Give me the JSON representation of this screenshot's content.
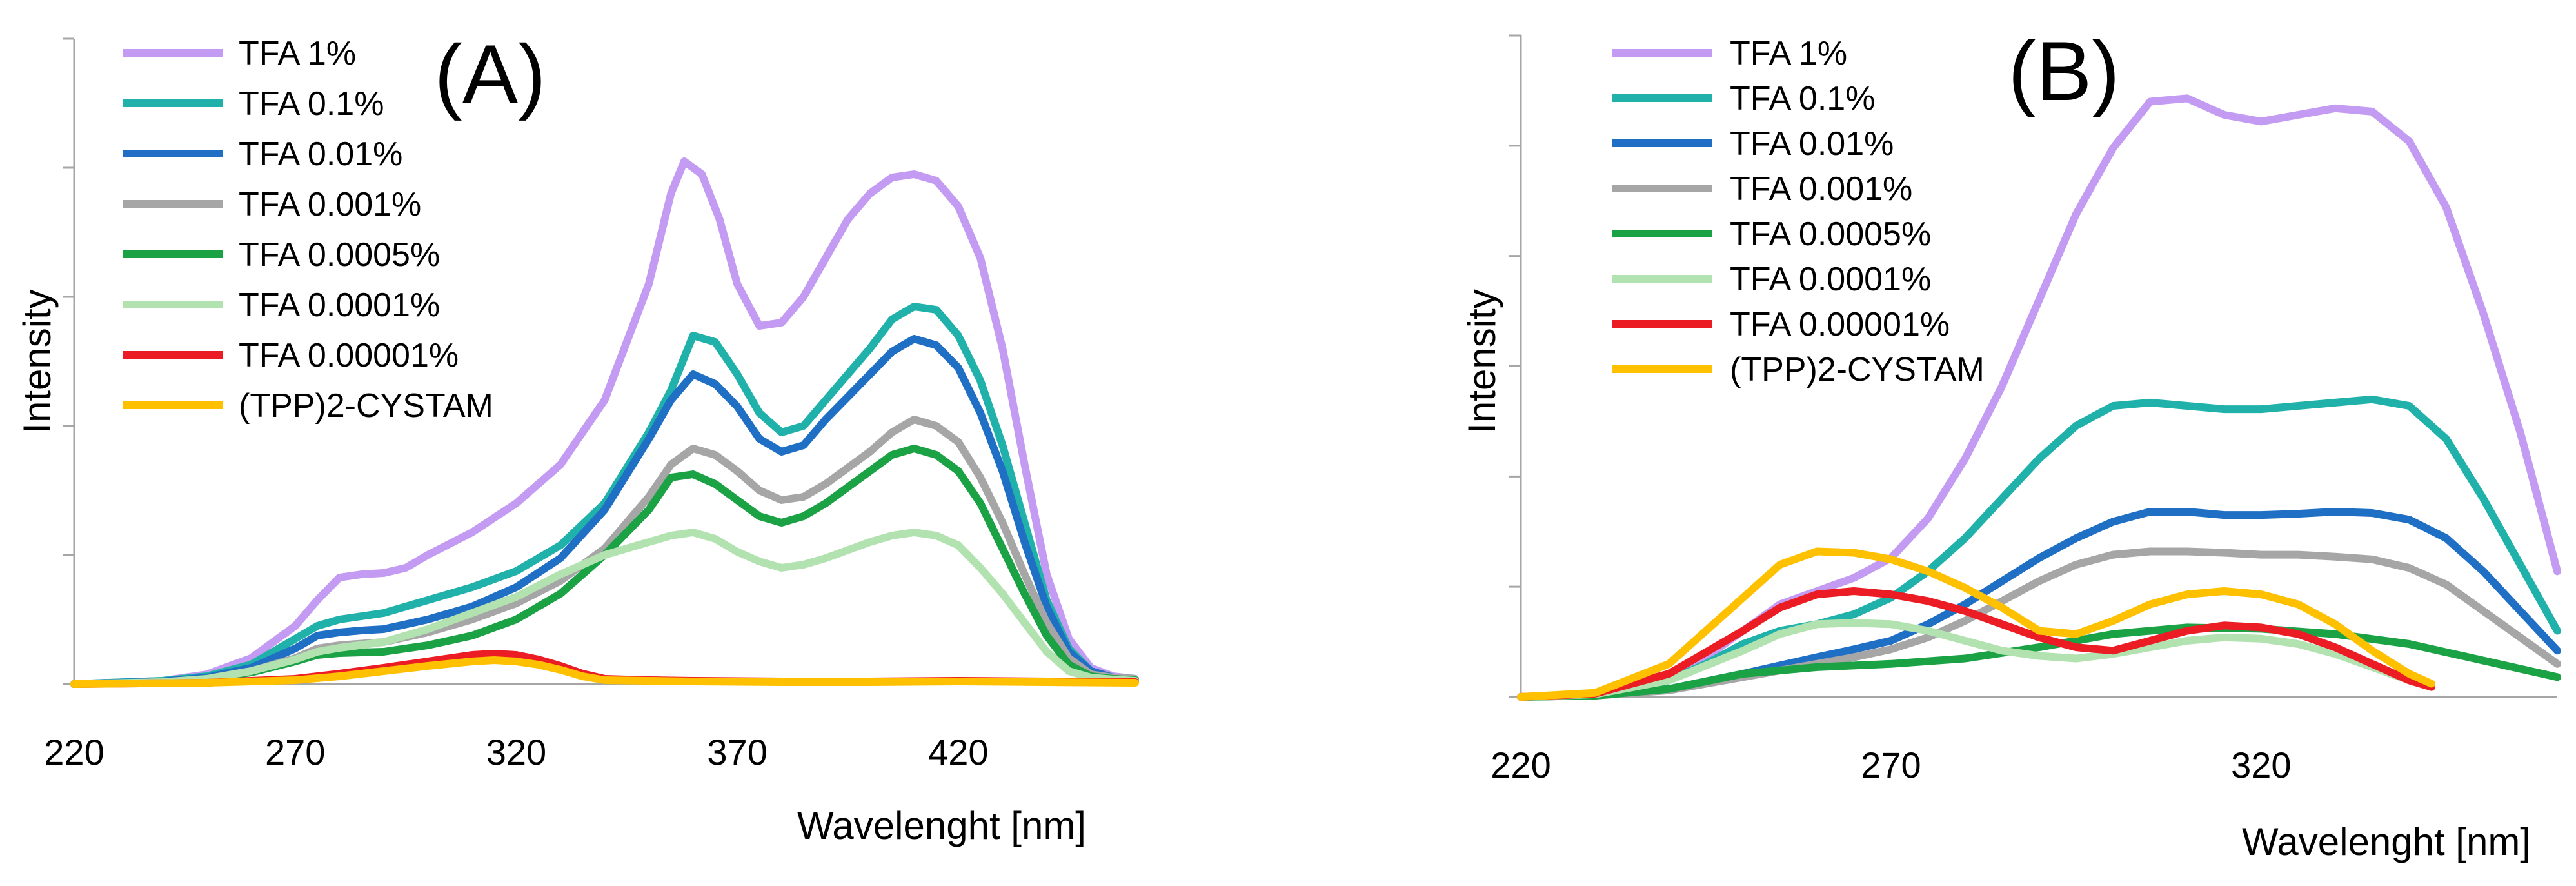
{
  "chart_data": [
    {
      "type": "line",
      "panel_label": "(A)",
      "xlabel": "Wavelenght [nm]",
      "ylabel": "Intensity",
      "xlim": [
        220,
        460
      ],
      "ylim": [
        0,
        1.0
      ],
      "xticks": [
        220,
        270,
        320,
        370,
        420
      ],
      "xtick_labels": [
        "220",
        "270",
        "320",
        "370",
        "420"
      ],
      "yticks": [
        0,
        0.2,
        0.4,
        0.6,
        0.8,
        1.0
      ],
      "grid": false,
      "legend_position": "top-left",
      "series": [
        {
          "name": "TFA 1%",
          "color": "#c39bf2",
          "x": [
            220,
            240,
            250,
            260,
            270,
            275,
            280,
            285,
            290,
            295,
            300,
            310,
            320,
            330,
            340,
            350,
            355,
            358,
            362,
            366,
            370,
            375,
            380,
            385,
            390,
            395,
            400,
            405,
            410,
            415,
            420,
            425,
            430,
            435,
            440,
            445,
            450,
            455,
            460
          ],
          "y": [
            0,
            0.005,
            0.015,
            0.04,
            0.09,
            0.13,
            0.165,
            0.17,
            0.172,
            0.18,
            0.2,
            0.235,
            0.28,
            0.34,
            0.44,
            0.62,
            0.76,
            0.81,
            0.79,
            0.72,
            0.62,
            0.555,
            0.56,
            0.6,
            0.66,
            0.72,
            0.76,
            0.785,
            0.79,
            0.78,
            0.74,
            0.66,
            0.52,
            0.34,
            0.17,
            0.07,
            0.025,
            0.012,
            0.008
          ]
        },
        {
          "name": "TFA 0.1%",
          "color": "#20b2aa",
          "x": [
            220,
            240,
            250,
            260,
            270,
            275,
            280,
            285,
            290,
            300,
            310,
            320,
            330,
            340,
            350,
            355,
            360,
            365,
            370,
            375,
            380,
            385,
            390,
            400,
            405,
            410,
            415,
            420,
            425,
            430,
            435,
            440,
            445,
            450,
            455,
            460
          ],
          "y": [
            0,
            0.005,
            0.012,
            0.03,
            0.07,
            0.09,
            0.1,
            0.105,
            0.11,
            0.13,
            0.15,
            0.175,
            0.215,
            0.28,
            0.39,
            0.455,
            0.54,
            0.53,
            0.48,
            0.42,
            0.39,
            0.4,
            0.44,
            0.52,
            0.565,
            0.585,
            0.58,
            0.54,
            0.47,
            0.37,
            0.25,
            0.13,
            0.055,
            0.02,
            0.01,
            0.008
          ]
        },
        {
          "name": "TFA 0.01%",
          "color": "#1f6fc5",
          "x": [
            220,
            240,
            250,
            260,
            270,
            275,
            280,
            285,
            290,
            300,
            310,
            320,
            330,
            340,
            350,
            355,
            360,
            365,
            370,
            375,
            380,
            385,
            390,
            400,
            405,
            410,
            415,
            420,
            425,
            430,
            435,
            440,
            445,
            450,
            455,
            460
          ],
          "y": [
            0,
            0.004,
            0.01,
            0.025,
            0.055,
            0.075,
            0.08,
            0.083,
            0.085,
            0.1,
            0.12,
            0.15,
            0.195,
            0.27,
            0.38,
            0.44,
            0.48,
            0.465,
            0.43,
            0.38,
            0.36,
            0.37,
            0.41,
            0.48,
            0.515,
            0.535,
            0.525,
            0.49,
            0.42,
            0.33,
            0.22,
            0.12,
            0.05,
            0.02,
            0.01,
            0.008
          ]
        },
        {
          "name": "TFA 0.001%",
          "color": "#a6a6a6",
          "x": [
            220,
            240,
            250,
            260,
            270,
            275,
            280,
            290,
            300,
            310,
            320,
            330,
            340,
            350,
            355,
            360,
            365,
            370,
            375,
            380,
            385,
            390,
            400,
            405,
            410,
            415,
            420,
            425,
            430,
            435,
            440,
            445,
            450,
            455,
            460
          ],
          "y": [
            0,
            0.003,
            0.008,
            0.02,
            0.04,
            0.055,
            0.06,
            0.065,
            0.08,
            0.1,
            0.125,
            0.16,
            0.21,
            0.29,
            0.34,
            0.365,
            0.355,
            0.33,
            0.3,
            0.285,
            0.29,
            0.31,
            0.36,
            0.39,
            0.41,
            0.4,
            0.375,
            0.32,
            0.25,
            0.17,
            0.095,
            0.04,
            0.015,
            0.01,
            0.008
          ]
        },
        {
          "name": "TFA 0.0005%",
          "color": "#1aa245",
          "x": [
            220,
            240,
            250,
            260,
            270,
            275,
            280,
            290,
            300,
            310,
            320,
            330,
            340,
            350,
            355,
            360,
            365,
            370,
            375,
            380,
            385,
            390,
            400,
            405,
            410,
            415,
            420,
            425,
            430,
            435,
            440,
            445,
            450,
            455,
            460
          ],
          "y": [
            0,
            0.003,
            0.008,
            0.018,
            0.035,
            0.045,
            0.048,
            0.05,
            0.06,
            0.075,
            0.1,
            0.14,
            0.2,
            0.27,
            0.32,
            0.325,
            0.31,
            0.285,
            0.26,
            0.25,
            0.26,
            0.28,
            0.33,
            0.355,
            0.365,
            0.355,
            0.33,
            0.28,
            0.21,
            0.14,
            0.075,
            0.03,
            0.012,
            0.008,
            0.006
          ]
        },
        {
          "name": "TFA 0.0001%",
          "color": "#b3e2b1",
          "x": [
            220,
            240,
            250,
            260,
            270,
            275,
            280,
            290,
            300,
            310,
            320,
            330,
            340,
            350,
            355,
            360,
            365,
            370,
            375,
            380,
            385,
            390,
            400,
            405,
            410,
            415,
            420,
            425,
            430,
            435,
            440,
            445,
            450,
            455,
            460
          ],
          "y": [
            0,
            0.003,
            0.008,
            0.02,
            0.038,
            0.05,
            0.056,
            0.065,
            0.085,
            0.11,
            0.135,
            0.17,
            0.2,
            0.22,
            0.23,
            0.235,
            0.225,
            0.205,
            0.19,
            0.18,
            0.185,
            0.195,
            0.22,
            0.23,
            0.235,
            0.23,
            0.215,
            0.18,
            0.14,
            0.095,
            0.05,
            0.02,
            0.01,
            0.007,
            0.005
          ]
        },
        {
          "name": "TFA 0.00001%",
          "color": "#ec1c24",
          "x": [
            220,
            250,
            270,
            280,
            290,
            300,
            310,
            315,
            320,
            325,
            330,
            335,
            340,
            350,
            360,
            380,
            400,
            420,
            440,
            460
          ],
          "y": [
            0,
            0.002,
            0.008,
            0.016,
            0.025,
            0.035,
            0.045,
            0.047,
            0.045,
            0.038,
            0.028,
            0.016,
            0.008,
            0.006,
            0.005,
            0.004,
            0.004,
            0.005,
            0.004,
            0.003
          ]
        },
        {
          "name": "(TPP)2-CYSTAM",
          "color": "#ffc000",
          "x": [
            220,
            250,
            270,
            280,
            290,
            300,
            310,
            315,
            320,
            325,
            330,
            335,
            340,
            350,
            360,
            380,
            400,
            420,
            440,
            460
          ],
          "y": [
            0,
            0.002,
            0.006,
            0.012,
            0.02,
            0.028,
            0.035,
            0.037,
            0.035,
            0.03,
            0.022,
            0.012,
            0.006,
            0.005,
            0.004,
            0.003,
            0.003,
            0.004,
            0.003,
            0.002
          ]
        }
      ]
    },
    {
      "type": "line",
      "panel_label": "(B)",
      "xlabel": "Wavelenght [nm]",
      "ylabel": "Intensity",
      "xlim": [
        220,
        360
      ],
      "ylim": [
        0,
        1.0
      ],
      "xticks": [
        220,
        270,
        320
      ],
      "xtick_labels": [
        "220",
        "270",
        "320"
      ],
      "yticks": [
        0,
        0.1667,
        0.3333,
        0.5,
        0.6667,
        0.8333,
        1.0
      ],
      "grid": false,
      "legend_position": "top-left",
      "series": [
        {
          "name": "TFA 1%",
          "color": "#c39bf2",
          "x": [
            220,
            230,
            235,
            240,
            245,
            250,
            255,
            260,
            265,
            270,
            275,
            280,
            285,
            290,
            295,
            300,
            305,
            310,
            315,
            320,
            325,
            330,
            335,
            340,
            345,
            350,
            355,
            360
          ],
          "y": [
            0,
            0.004,
            0.012,
            0.03,
            0.06,
            0.1,
            0.14,
            0.16,
            0.18,
            0.21,
            0.27,
            0.36,
            0.47,
            0.6,
            0.73,
            0.83,
            0.9,
            0.905,
            0.88,
            0.87,
            0.88,
            0.89,
            0.885,
            0.84,
            0.74,
            0.58,
            0.4,
            0.19
          ]
        },
        {
          "name": "TFA 0.1%",
          "color": "#20b2aa",
          "x": [
            220,
            230,
            235,
            240,
            245,
            250,
            255,
            260,
            265,
            270,
            275,
            280,
            285,
            290,
            295,
            300,
            305,
            310,
            315,
            320,
            325,
            330,
            335,
            340,
            345,
            350,
            355,
            360
          ],
          "y": [
            0,
            0.003,
            0.01,
            0.025,
            0.05,
            0.08,
            0.1,
            0.11,
            0.125,
            0.15,
            0.19,
            0.24,
            0.3,
            0.36,
            0.41,
            0.44,
            0.445,
            0.44,
            0.435,
            0.435,
            0.44,
            0.445,
            0.45,
            0.44,
            0.39,
            0.3,
            0.2,
            0.1
          ]
        },
        {
          "name": "TFA 0.01%",
          "color": "#1f6fc5",
          "x": [
            220,
            230,
            240,
            250,
            260,
            265,
            270,
            275,
            280,
            285,
            290,
            295,
            300,
            305,
            310,
            315,
            320,
            325,
            330,
            335,
            340,
            345,
            350,
            355,
            360
          ],
          "y": [
            0,
            0.002,
            0.012,
            0.035,
            0.06,
            0.072,
            0.085,
            0.11,
            0.14,
            0.175,
            0.21,
            0.24,
            0.265,
            0.28,
            0.28,
            0.275,
            0.275,
            0.277,
            0.28,
            0.278,
            0.268,
            0.24,
            0.19,
            0.13,
            0.07
          ]
        },
        {
          "name": "TFA 0.001%",
          "color": "#a6a6a6",
          "x": [
            220,
            230,
            240,
            250,
            260,
            265,
            270,
            275,
            280,
            285,
            290,
            295,
            300,
            305,
            310,
            315,
            320,
            325,
            330,
            335,
            340,
            345,
            350,
            355,
            360
          ],
          "y": [
            0,
            0.002,
            0.01,
            0.03,
            0.05,
            0.06,
            0.072,
            0.09,
            0.115,
            0.145,
            0.175,
            0.2,
            0.215,
            0.22,
            0.22,
            0.218,
            0.215,
            0.215,
            0.212,
            0.208,
            0.195,
            0.17,
            0.13,
            0.09,
            0.05
          ]
        },
        {
          "name": "TFA 0.0005%",
          "color": "#1aa245",
          "x": [
            220,
            230,
            240,
            250,
            260,
            270,
            280,
            290,
            300,
            310,
            320,
            330,
            340,
            350,
            360
          ],
          "y": [
            0,
            0.002,
            0.012,
            0.035,
            0.045,
            0.05,
            0.058,
            0.075,
            0.095,
            0.105,
            0.103,
            0.095,
            0.08,
            0.055,
            0.03
          ]
        },
        {
          "name": "TFA 0.0001%",
          "color": "#b3e2b1",
          "x": [
            220,
            230,
            240,
            250,
            255,
            260,
            265,
            270,
            275,
            280,
            285,
            290,
            295,
            300,
            305,
            310,
            315,
            320,
            325,
            330,
            335,
            340,
            343
          ],
          "y": [
            0,
            0.004,
            0.025,
            0.07,
            0.095,
            0.11,
            0.112,
            0.11,
            0.1,
            0.085,
            0.07,
            0.062,
            0.058,
            0.065,
            0.075,
            0.085,
            0.09,
            0.088,
            0.08,
            0.065,
            0.045,
            0.025,
            0.015
          ]
        },
        {
          "name": "TFA 0.00001%",
          "color": "#ec1c24",
          "x": [
            220,
            230,
            240,
            250,
            255,
            260,
            265,
            270,
            275,
            280,
            285,
            290,
            295,
            300,
            305,
            310,
            315,
            320,
            325,
            330,
            335,
            340,
            343
          ],
          "y": [
            0,
            0.005,
            0.035,
            0.1,
            0.135,
            0.155,
            0.16,
            0.155,
            0.145,
            0.13,
            0.11,
            0.09,
            0.075,
            0.07,
            0.085,
            0.1,
            0.108,
            0.105,
            0.095,
            0.075,
            0.05,
            0.025,
            0.015
          ]
        },
        {
          "name": "(TPP)2-CYSTAM",
          "color": "#ffc000",
          "x": [
            220,
            230,
            240,
            250,
            255,
            260,
            265,
            270,
            275,
            280,
            285,
            290,
            295,
            300,
            305,
            310,
            315,
            320,
            325,
            330,
            335,
            340,
            343
          ],
          "y": [
            0,
            0.006,
            0.05,
            0.15,
            0.2,
            0.22,
            0.218,
            0.208,
            0.19,
            0.165,
            0.135,
            0.1,
            0.095,
            0.115,
            0.14,
            0.155,
            0.16,
            0.155,
            0.14,
            0.11,
            0.07,
            0.035,
            0.02
          ]
        }
      ]
    }
  ]
}
